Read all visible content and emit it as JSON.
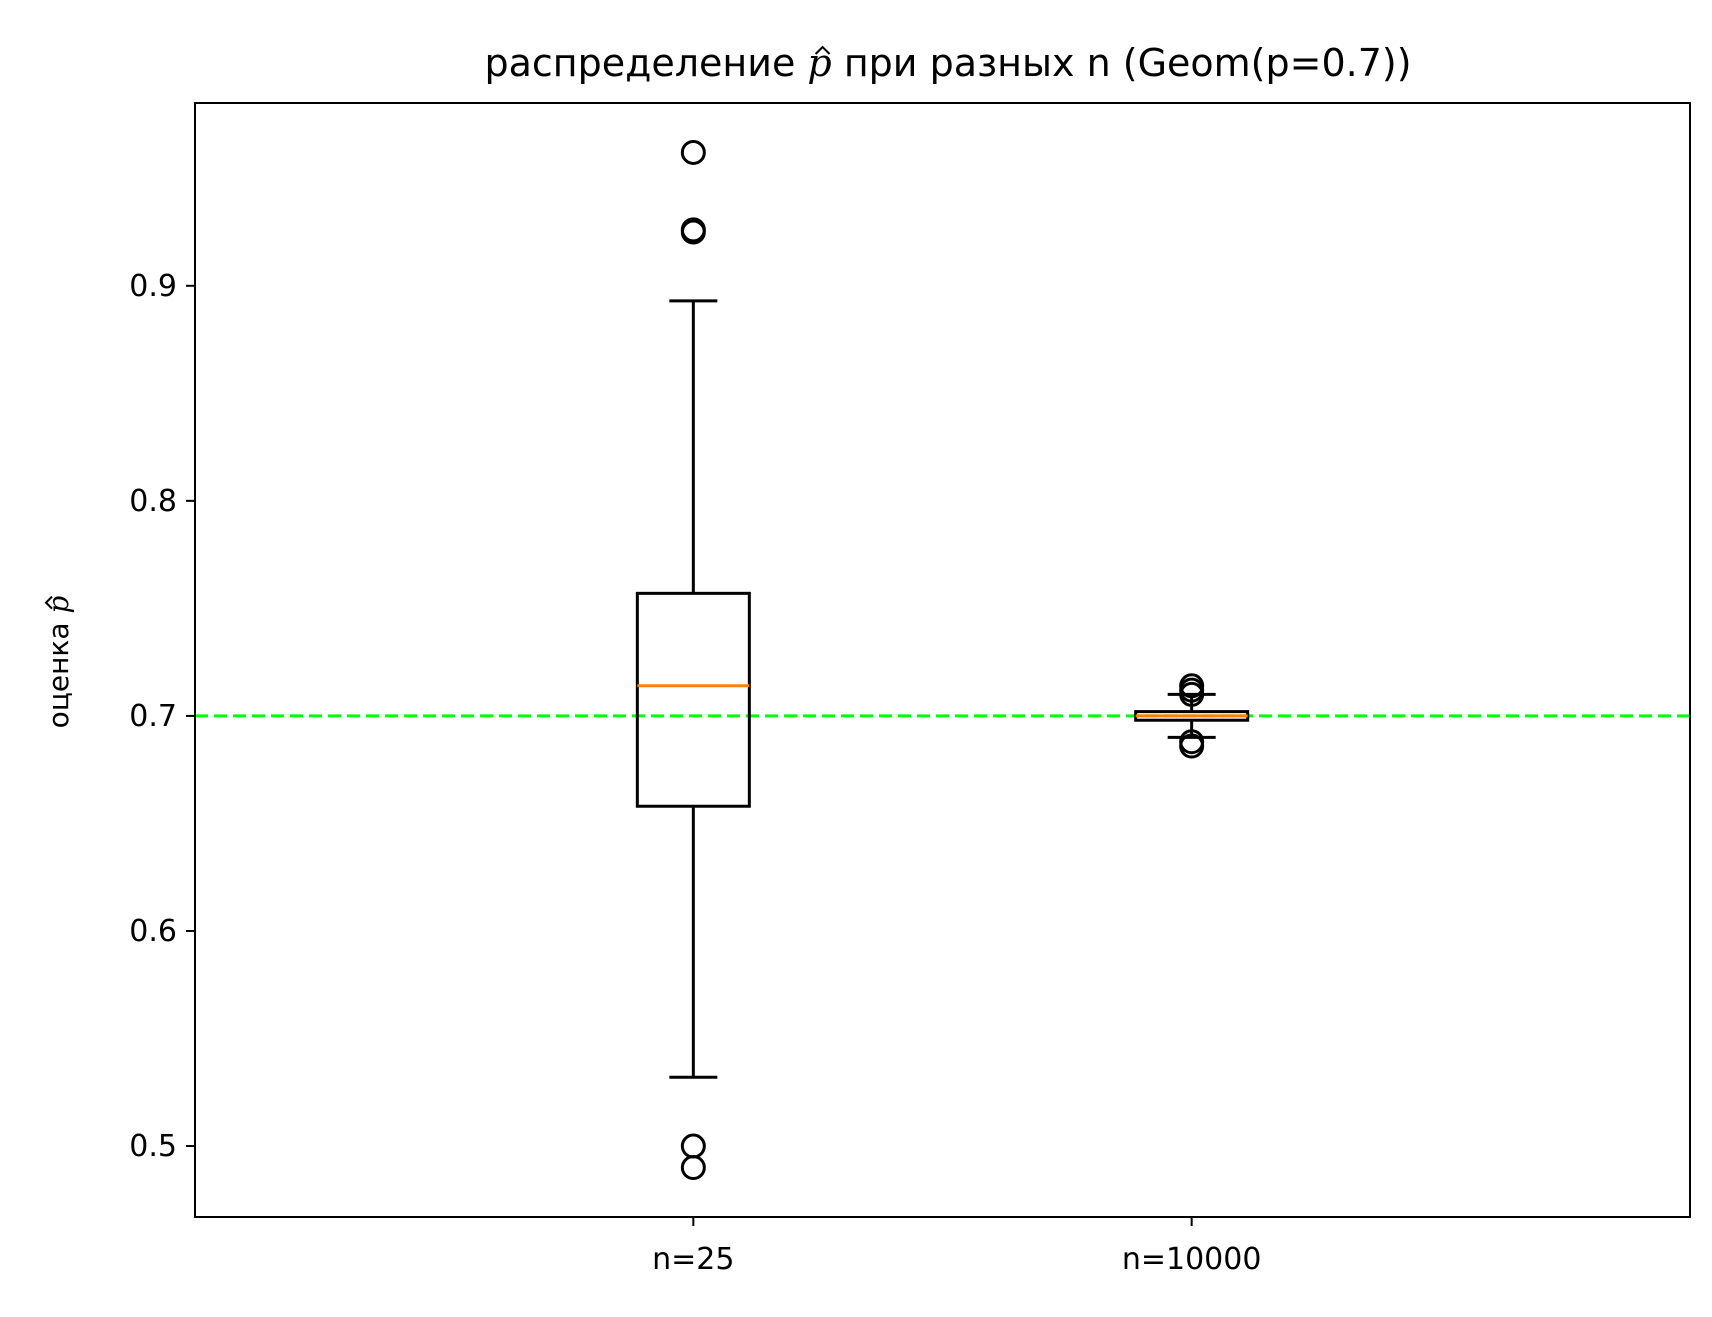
{
  "chart_data": {
    "type": "box",
    "title": {
      "before": "распределение ",
      "symbol": "p",
      "after": " при разных n (Geom(p=0.7))"
    },
    "xlabel": "",
    "ylabel": {
      "before": "оценка ",
      "symbol": "p"
    },
    "ylim": [
      0.467,
      0.985
    ],
    "yticks": [
      0.5,
      0.6,
      0.7,
      0.8,
      0.9
    ],
    "ytick_labels": [
      "0.5",
      "0.6",
      "0.7",
      "0.8",
      "0.9"
    ],
    "categories": [
      "n=25",
      "n=10000"
    ],
    "boxes": [
      {
        "label": "n=25",
        "whisker_low": 0.532,
        "q1": 0.658,
        "median": 0.714,
        "q3": 0.757,
        "whisker_high": 0.893,
        "outliers": [
          0.962,
          0.926,
          0.925,
          0.5,
          0.49
        ]
      },
      {
        "label": "n=10000",
        "whisker_low": 0.69,
        "q1": 0.698,
        "median": 0.7,
        "q3": 0.702,
        "whisker_high": 0.71,
        "outliers": [
          0.714,
          0.712,
          0.71,
          0.688,
          0.686
        ]
      }
    ],
    "reference_line": {
      "y": 0.7,
      "style": "dashed",
      "color": "#00ff00"
    },
    "grid": false,
    "legend": "none",
    "colors": {
      "box": "#000000",
      "median": "#ff7f0e",
      "reference": "#00ff00"
    }
  }
}
